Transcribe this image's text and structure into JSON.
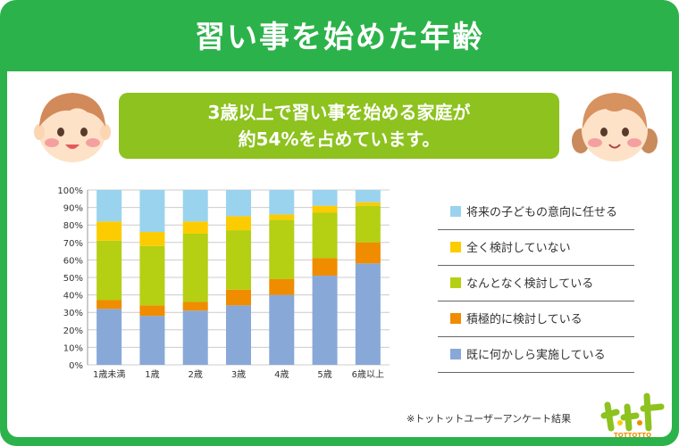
{
  "header": {
    "title": "習い事を始めた年齢"
  },
  "banner": {
    "line1": "3歳以上で習い事を始める家庭が",
    "line2": "約54%を占めています。"
  },
  "source": "※トットットユーザーアンケート結果",
  "logo": {
    "mark": "トット",
    "text": "TOTTOTTO"
  },
  "colors": {
    "frame": "#2cb24a",
    "banner": "#8dc21f",
    "series": [
      "#88a8d8",
      "#f08c00",
      "#b5cf13",
      "#fccc00",
      "#9ad3ee"
    ]
  },
  "chart_data": {
    "type": "bar",
    "stacked": true,
    "categories": [
      "1歳未満",
      "1歳",
      "2歳",
      "3歳",
      "4歳",
      "5歳",
      "6歳以上"
    ],
    "series": [
      {
        "name": "既に何かしら実施している",
        "values": [
          32,
          28,
          31,
          34,
          40,
          51,
          58
        ]
      },
      {
        "name": "積極的に検討している",
        "values": [
          5,
          6,
          5,
          9,
          9,
          10,
          12
        ]
      },
      {
        "name": "なんとなく検討している",
        "values": [
          34,
          34,
          39,
          34,
          34,
          26,
          21
        ]
      },
      {
        "name": "全く検討していない",
        "values": [
          11,
          8,
          7,
          8,
          3,
          4,
          2
        ]
      },
      {
        "name": "将来の子どもの意向に任せる",
        "values": [
          18,
          24,
          18,
          15,
          14,
          9,
          7
        ]
      }
    ],
    "ylim": [
      0,
      100
    ],
    "yticks": [
      "0%",
      "10%",
      "20%",
      "30%",
      "40%",
      "50%",
      "60%",
      "70%",
      "80%",
      "90%",
      "100%"
    ],
    "legend": {
      "position": "right",
      "order": [
        "将来の子どもの意向に任せる",
        "全く検討していない",
        "なんとなく検討している",
        "積極的に検討している",
        "既に何かしら実施している"
      ]
    },
    "grid": true
  }
}
